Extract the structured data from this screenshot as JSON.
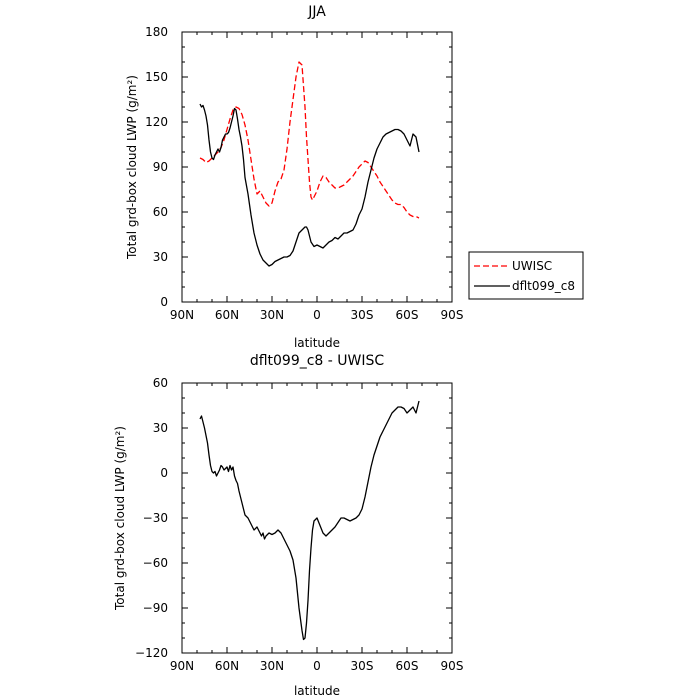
{
  "chart_data": [
    {
      "type": "line",
      "title": "JJA",
      "xlabel": "latitude",
      "ylabel": "Total grd-box cloud LWP (g/m²)",
      "xlim": [
        90,
        -90
      ],
      "ylim": [
        0,
        180
      ],
      "xticks": [
        90,
        60,
        30,
        0,
        -30,
        -60,
        -90
      ],
      "xtick_labels": [
        "90N",
        "60N",
        "30N",
        "0",
        "30S",
        "60S",
        "90S"
      ],
      "yticks": [
        0,
        30,
        60,
        90,
        120,
        150,
        180
      ],
      "ytick_labels": [
        "0",
        "30",
        "60",
        "90",
        "120",
        "150",
        "180"
      ],
      "legend_position": "right, outside plot",
      "series": [
        {
          "name": "UWISC",
          "color": "#ff0000",
          "dash": "dashed",
          "x": [
            78,
            76,
            74,
            72,
            70,
            68,
            66,
            64,
            62,
            60,
            58,
            56,
            54,
            52,
            50,
            48,
            46,
            44,
            42,
            40,
            38,
            36,
            34,
            32,
            30,
            28,
            26,
            24,
            22,
            20,
            18,
            16,
            14,
            12,
            10,
            8,
            7,
            6,
            5,
            4,
            3,
            2,
            0,
            -2,
            -4,
            -6,
            -8,
            -10,
            -12,
            -14,
            -16,
            -18,
            -20,
            -22,
            -24,
            -26,
            -28,
            -30,
            -32,
            -34,
            -36,
            -38,
            -40,
            -42,
            -44,
            -46,
            -48,
            -50,
            -52,
            -54,
            -56,
            -58,
            -60,
            -62,
            -64,
            -66,
            -68
          ],
          "y": [
            96,
            95,
            93,
            94,
            96,
            98,
            100,
            103,
            108,
            115,
            122,
            128,
            130,
            129,
            125,
            118,
            108,
            95,
            82,
            72,
            74,
            70,
            66,
            64,
            66,
            74,
            80,
            82,
            88,
            102,
            120,
            135,
            150,
            160,
            158,
            130,
            110,
            95,
            80,
            70,
            68,
            70,
            74,
            80,
            84,
            83,
            80,
            78,
            76,
            76,
            77,
            78,
            80,
            82,
            84,
            87,
            90,
            92,
            94,
            93,
            90,
            87,
            84,
            80,
            77,
            74,
            71,
            68,
            66,
            65,
            65,
            63,
            60,
            58,
            57,
            57,
            56
          ]
        },
        {
          "name": "dflt099_c8",
          "color": "#000000",
          "dash": "solid",
          "x": [
            78,
            77,
            76,
            75,
            74,
            73,
            72,
            71,
            70,
            69,
            68,
            67,
            66,
            65,
            64,
            63,
            62,
            61,
            60,
            59,
            58,
            57,
            56,
            55,
            54,
            53,
            52,
            51,
            50,
            49,
            48,
            46,
            44,
            42,
            40,
            38,
            36,
            34,
            32,
            30,
            28,
            26,
            24,
            22,
            20,
            18,
            16,
            14,
            12,
            10,
            8,
            7,
            6,
            5,
            4,
            2,
            0,
            -2,
            -4,
            -6,
            -8,
            -10,
            -12,
            -14,
            -16,
            -18,
            -20,
            -22,
            -24,
            -26,
            -28,
            -30,
            -32,
            -34,
            -36,
            -38,
            -40,
            -42,
            -44,
            -46,
            -48,
            -50,
            -52,
            -54,
            -56,
            -58,
            -60,
            -62,
            -64,
            -66,
            -68
          ],
          "y": [
            132,
            130,
            131,
            128,
            124,
            118,
            108,
            100,
            96,
            95,
            98,
            100,
            102,
            100,
            103,
            108,
            110,
            112,
            112,
            113,
            116,
            120,
            124,
            129,
            128,
            122,
            115,
            110,
            104,
            95,
            83,
            72,
            58,
            46,
            38,
            32,
            28,
            26,
            24,
            25,
            27,
            28,
            29,
            30,
            30,
            31,
            34,
            40,
            46,
            48,
            50,
            50,
            48,
            44,
            40,
            37,
            38,
            37,
            36,
            38,
            40,
            41,
            43,
            42,
            44,
            46,
            46,
            47,
            48,
            52,
            58,
            62,
            70,
            80,
            88,
            96,
            102,
            106,
            110,
            112,
            113,
            114,
            115,
            115,
            114,
            112,
            108,
            104,
            112,
            110,
            100
          ]
        }
      ]
    },
    {
      "type": "line",
      "title": "dflt099_c8 - UWISC",
      "xlabel": "latitude",
      "ylabel": "Total grd-box cloud LWP (g/m²)",
      "xlim": [
        90,
        -90
      ],
      "ylim": [
        -120,
        60
      ],
      "xticks": [
        90,
        60,
        30,
        0,
        -30,
        -60,
        -90
      ],
      "xtick_labels": [
        "90N",
        "60N",
        "30N",
        "0",
        "30S",
        "60S",
        "90S"
      ],
      "yticks": [
        -120,
        -90,
        -60,
        -30,
        0,
        30,
        60
      ],
      "ytick_labels": [
        "−120",
        "−90",
        "−60",
        "−30",
        "0",
        "30",
        "60"
      ],
      "series": [
        {
          "name": "",
          "color": "#000000",
          "dash": "solid",
          "x": [
            78,
            77,
            76,
            75,
            74,
            73,
            72,
            71,
            70,
            69,
            68,
            67,
            66,
            65,
            64,
            63,
            62,
            61,
            60,
            59,
            58,
            57,
            56,
            55,
            54,
            53,
            52,
            51,
            50,
            49,
            48,
            46,
            44,
            42,
            40,
            38,
            37,
            36,
            35,
            34,
            32,
            30,
            28,
            26,
            24,
            22,
            20,
            18,
            16,
            14,
            12,
            10,
            9,
            8,
            7,
            6,
            5,
            4,
            3,
            2,
            0,
            -2,
            -4,
            -6,
            -8,
            -10,
            -12,
            -14,
            -16,
            -18,
            -20,
            -22,
            -24,
            -26,
            -28,
            -30,
            -32,
            -34,
            -36,
            -38,
            -40,
            -42,
            -44,
            -46,
            -48,
            -50,
            -52,
            -54,
            -56,
            -58,
            -60,
            -62,
            -64,
            -66,
            -68
          ],
          "y": [
            36,
            38,
            34,
            30,
            25,
            20,
            12,
            5,
            1,
            0,
            1,
            -2,
            0,
            2,
            5,
            4,
            2,
            3,
            4,
            1,
            5,
            2,
            4,
            -2,
            -5,
            -7,
            -12,
            -16,
            -20,
            -24,
            -28,
            -30,
            -34,
            -38,
            -36,
            -40,
            -42,
            -40,
            -44,
            -42,
            -40,
            -41,
            -40,
            -38,
            -40,
            -44,
            -48,
            -52,
            -58,
            -70,
            -90,
            -105,
            -111,
            -110,
            -100,
            -85,
            -65,
            -50,
            -38,
            -32,
            -30,
            -35,
            -40,
            -42,
            -40,
            -38,
            -36,
            -33,
            -30,
            -30,
            -31,
            -32,
            -31,
            -30,
            -28,
            -24,
            -16,
            -6,
            4,
            12,
            18,
            24,
            28,
            32,
            36,
            40,
            42,
            44,
            44,
            43,
            40,
            42,
            44,
            40,
            48
          ]
        }
      ]
    }
  ]
}
